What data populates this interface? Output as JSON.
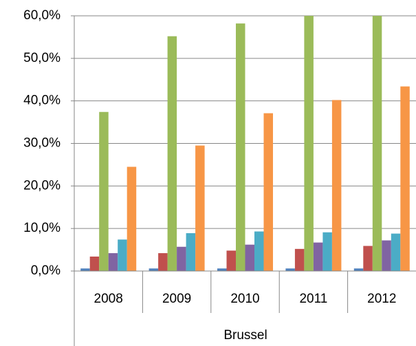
{
  "chart_data": {
    "type": "bar",
    "categories": [
      "2008",
      "2009",
      "2010",
      "2011",
      "2012"
    ],
    "group_label": "Brussel",
    "series": [
      {
        "color": "#4f81bd",
        "values": [
          0.6,
          0.6,
          0.6,
          0.6,
          0.6
        ]
      },
      {
        "color": "#c0504d",
        "values": [
          3.4,
          4.2,
          4.8,
          5.2,
          5.9
        ]
      },
      {
        "color": "#9bbb59",
        "values": [
          37.4,
          55.2,
          58.2,
          60,
          60
        ]
      },
      {
        "color": "#8064a2",
        "values": [
          4.2,
          5.7,
          6.2,
          6.7,
          7.2
        ]
      },
      {
        "color": "#4bacc6",
        "values": [
          7.4,
          8.9,
          9.3,
          9.1,
          8.8
        ]
      },
      {
        "color": "#f79646",
        "values": [
          24.5,
          29.5,
          37.1,
          40.2,
          43.4
        ]
      }
    ],
    "ylim": [
      0,
      60
    ],
    "yticks": [
      {
        "value": 0,
        "label": "0,0%"
      },
      {
        "value": 10,
        "label": "10,0%"
      },
      {
        "value": 20,
        "label": "20,0%"
      },
      {
        "value": 30,
        "label": "30,0%"
      },
      {
        "value": 40,
        "label": "40,0%"
      },
      {
        "value": 50,
        "label": "50,0%"
      },
      {
        "value": 60,
        "label": "60,0%"
      }
    ],
    "grid": true
  }
}
